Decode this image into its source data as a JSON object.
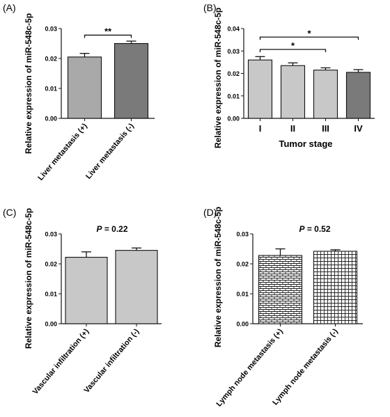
{
  "figure": {
    "colors": {
      "light_gray": "#c8c8c8",
      "mid_gray": "#a9a9a9",
      "dark_gray": "#7a7a7a",
      "axis": "#111111"
    }
  },
  "chart_data": [
    {
      "panel_label": "(A)",
      "type": "bar",
      "ylabel": "Relative expression of miR-548c-5p",
      "xlabel": "",
      "ylim": [
        0,
        0.03
      ],
      "yticks": [
        "0.00",
        "0.01",
        "0.02",
        "0.03"
      ],
      "categories": [
        "Liver metastasis (+)",
        "Liver metastasis (-)"
      ],
      "values": [
        0.0205,
        0.025
      ],
      "errors": [
        0.0012,
        0.0008
      ],
      "bar_colors": [
        "#a9a9a9",
        "#7a7a7a"
      ],
      "patterns": [
        "solid",
        "solid"
      ],
      "annotation": "",
      "significance": [
        {
          "from": 0,
          "to": 1,
          "label": "**",
          "y": 0.0278
        }
      ]
    },
    {
      "panel_label": "(B)",
      "type": "bar",
      "ylabel": "Relative expression of miR-548c-5p",
      "xlabel": "Tumor stage",
      "ylim": [
        0,
        0.04
      ],
      "yticks": [
        "0.00",
        "0.01",
        "0.02",
        "0.03",
        "0.04"
      ],
      "categories": [
        "I",
        "II",
        "III",
        "IV"
      ],
      "values": [
        0.026,
        0.0235,
        0.0215,
        0.0205
      ],
      "errors": [
        0.0015,
        0.0012,
        0.001,
        0.0012
      ],
      "bar_colors": [
        "#c8c8c8",
        "#c8c8c8",
        "#c8c8c8",
        "#7a7a7a"
      ],
      "patterns": [
        "solid",
        "solid",
        "solid",
        "solid"
      ],
      "annotation": "",
      "significance": [
        {
          "from": 0,
          "to": 3,
          "label": "*",
          "y": 0.0362
        },
        {
          "from": 0,
          "to": 2,
          "label": "*",
          "y": 0.0307
        }
      ]
    },
    {
      "panel_label": "(C)",
      "type": "bar",
      "ylabel": "Relative expression of miR-548c-5p",
      "xlabel": "",
      "ylim": [
        0,
        0.03
      ],
      "yticks": [
        "0.00",
        "0.01",
        "0.02",
        "0.03"
      ],
      "categories": [
        "Vascular infiltration (+)",
        "Vascular infiltration (-)"
      ],
      "values": [
        0.0222,
        0.0245
      ],
      "errors": [
        0.0018,
        0.0008
      ],
      "bar_colors": [
        "#c8c8c8",
        "#c8c8c8"
      ],
      "patterns": [
        "solid",
        "solid"
      ],
      "annotation": "P = 0.22",
      "significance": []
    },
    {
      "panel_label": "(D)",
      "type": "bar",
      "ylabel": "Relative expression of miR-548c-5p",
      "xlabel": "",
      "ylim": [
        0,
        0.03
      ],
      "yticks": [
        "0.00",
        "0.01",
        "0.02",
        "0.03"
      ],
      "categories": [
        "Lymph node metastasis (+)",
        "Lymph node metastasis (-)"
      ],
      "values": [
        0.0228,
        0.0242
      ],
      "errors": [
        0.0022,
        0.0005
      ],
      "bar_colors": [
        "#ffffff",
        "#ffffff"
      ],
      "patterns": [
        "bricks",
        "grid"
      ],
      "annotation": "P = 0.52",
      "significance": []
    }
  ]
}
